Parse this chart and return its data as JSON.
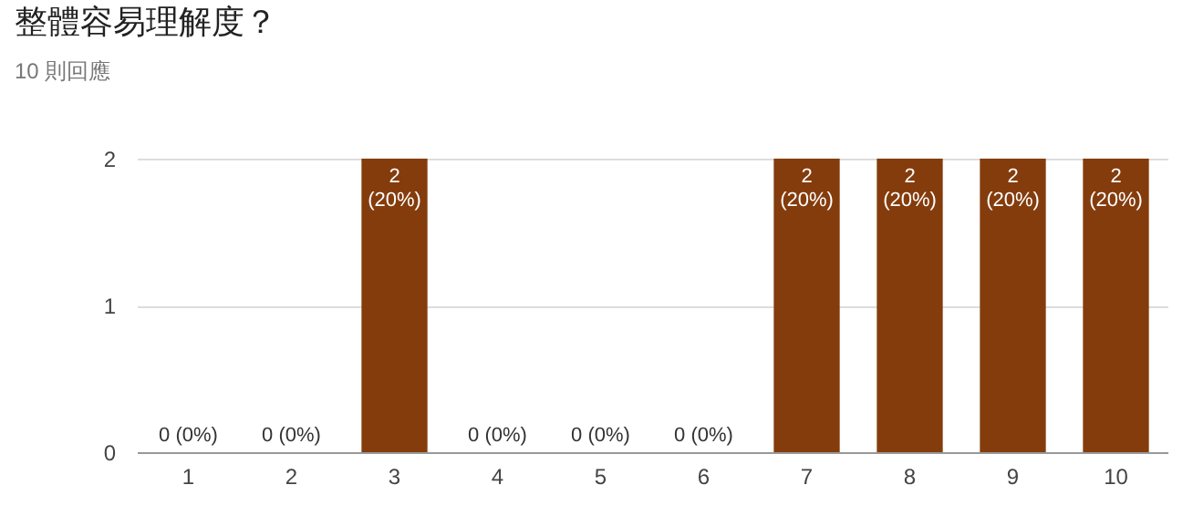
{
  "chart_data": {
    "type": "bar",
    "title": "整體容易理解度？",
    "subtitle": "10 則回應",
    "categories": [
      "1",
      "2",
      "3",
      "4",
      "5",
      "6",
      "7",
      "8",
      "9",
      "10"
    ],
    "values": [
      0,
      0,
      2,
      0,
      0,
      0,
      2,
      2,
      2,
      2
    ],
    "value_labels": [
      "0 (0%)",
      "0 (0%)",
      "2\n(20%)",
      "0 (0%)",
      "0 (0%)",
      "0 (0%)",
      "2\n(20%)",
      "2\n(20%)",
      "2\n(20%)",
      "2\n(20%)"
    ],
    "color": "#843c0c",
    "ylim": [
      0,
      2
    ],
    "yticks": [
      0,
      1,
      2
    ],
    "grid": "y"
  }
}
